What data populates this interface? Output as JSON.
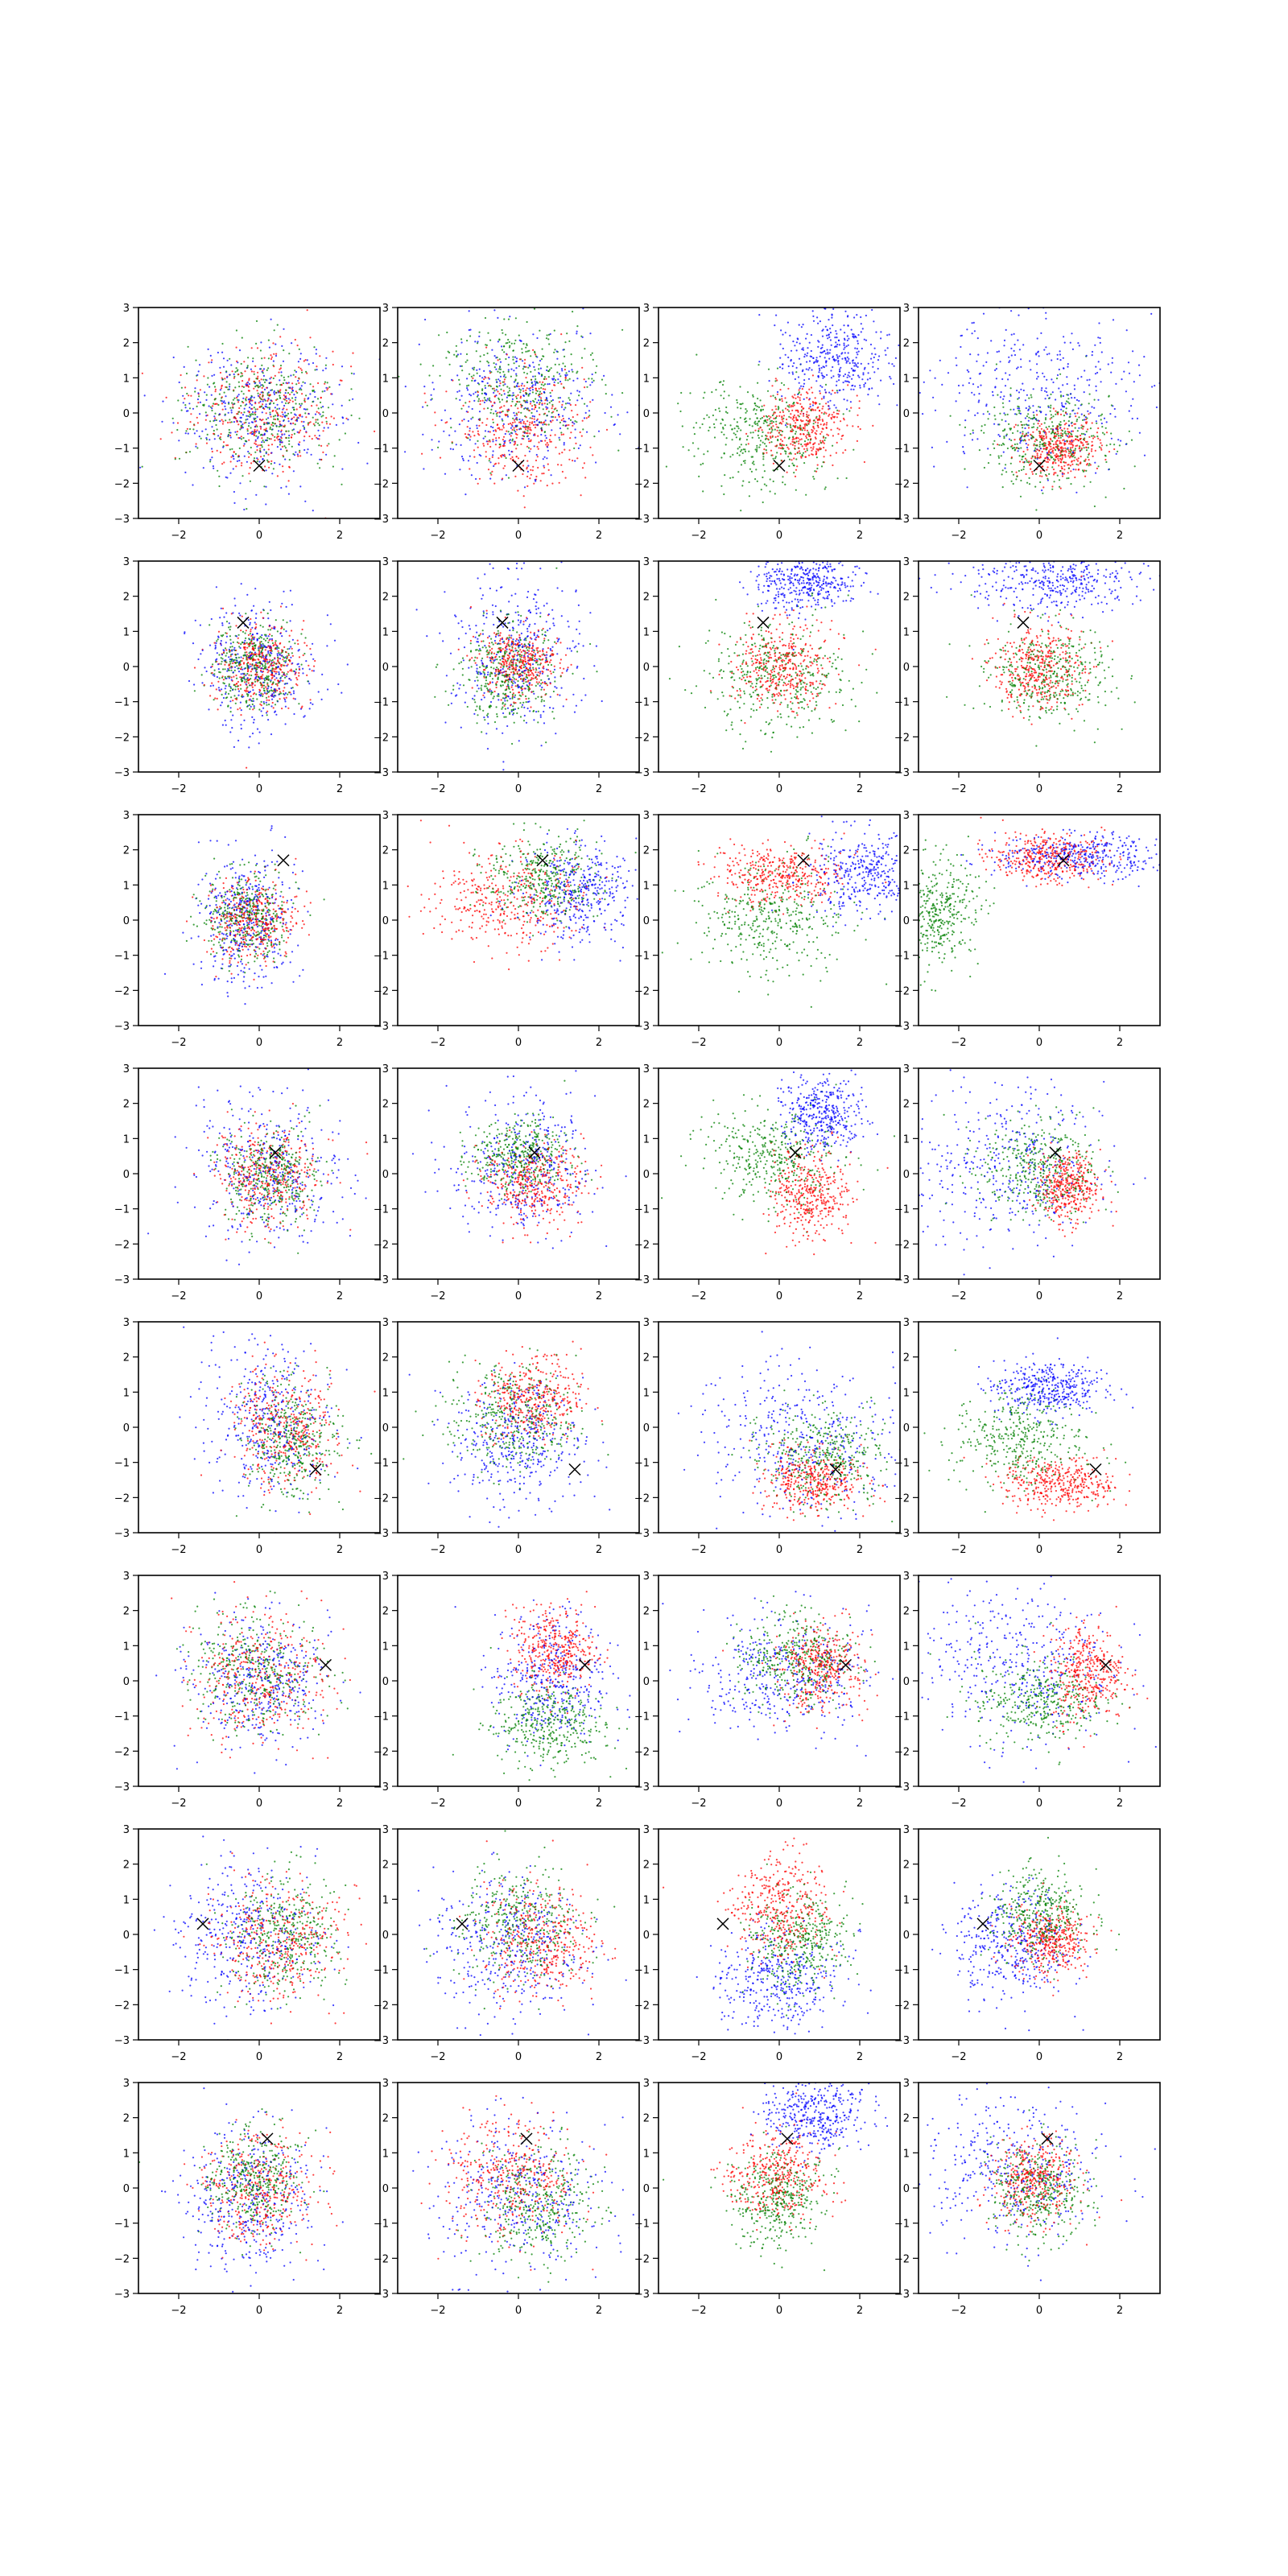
{
  "figure": {
    "rows": 8,
    "cols": 4
  },
  "colors": {
    "series_1": "#0000ff",
    "series_2": "#008000",
    "series_3": "#ff0000",
    "marker": "#000000"
  },
  "chart_data": {
    "type": "scatter",
    "grid": false,
    "legend": "none",
    "xlim": [
      -3,
      3
    ],
    "ylim": [
      -3,
      3
    ],
    "x_ticks": [
      -2,
      0,
      2
    ],
    "y_ticks": [
      -3,
      -2,
      -1,
      0,
      1,
      2,
      3
    ],
    "x_tick_labels": [
      "−2",
      "0",
      "2"
    ],
    "y_tick_labels": [
      "−3",
      "−2",
      "−1",
      "0",
      "1",
      "2",
      "3"
    ],
    "marker_shape": "x",
    "row_markers": [
      [
        0.0,
        -1.5
      ],
      [
        -0.4,
        1.25
      ],
      [
        0.6,
        1.7
      ],
      [
        0.4,
        0.6
      ],
      [
        1.4,
        -1.2
      ],
      [
        1.65,
        0.45
      ],
      [
        -1.4,
        0.3
      ],
      [
        0.2,
        1.4
      ]
    ],
    "panels": [
      [
        {
          "clusters": [
            {
              "cx": 0,
              "cy": 0,
              "sx": 1,
              "sy": 1
            },
            {
              "cx": 0,
              "cy": 0.1,
              "sx": 0.9,
              "sy": 0.9
            },
            {
              "cx": 0.1,
              "cy": 0,
              "sx": 0.9,
              "sy": 0.9
            }
          ]
        },
        {
          "clusters": [
            {
              "cx": 0,
              "cy": 0.3,
              "sx": 1.1,
              "sy": 1.1
            },
            {
              "cx": 0.1,
              "cy": 0.8,
              "sx": 1,
              "sy": 0.9
            },
            {
              "cx": 0.1,
              "cy": -0.4,
              "sx": 0.8,
              "sy": 0.8
            }
          ]
        },
        {
          "clusters": [
            {
              "cx": 1.4,
              "cy": 1.5,
              "sx": 0.65,
              "sy": 0.65
            },
            {
              "cx": -0.4,
              "cy": -0.6,
              "sx": 0.8,
              "sy": 0.8
            },
            {
              "cx": 0.6,
              "cy": -0.4,
              "sx": 0.55,
              "sy": 0.55
            }
          ]
        },
        {
          "clusters": [
            {
              "cx": 0,
              "cy": 0.5,
              "sx": 1.5,
              "sy": 1.1
            },
            {
              "cx": 0.2,
              "cy": -0.7,
              "sx": 0.8,
              "sy": 0.7
            },
            {
              "cx": 0.5,
              "cy": -1,
              "sx": 0.5,
              "sy": 0.4
            }
          ]
        }
      ],
      [
        {
          "clusters": [
            {
              "cx": 0,
              "cy": 0,
              "sx": 0.7,
              "sy": 0.9
            },
            {
              "cx": -0.1,
              "cy": 0,
              "sx": 0.5,
              "sy": 0.6
            },
            {
              "cx": 0,
              "cy": 0,
              "sx": 0.55,
              "sy": 0.6
            }
          ]
        },
        {
          "clusters": [
            {
              "cx": -0.1,
              "cy": 0.3,
              "sx": 0.8,
              "sy": 1.1
            },
            {
              "cx": -0.2,
              "cy": -0.2,
              "sx": 0.6,
              "sy": 0.7
            },
            {
              "cx": 0,
              "cy": 0.1,
              "sx": 0.5,
              "sy": 0.5
            }
          ]
        },
        {
          "clusters": [
            {
              "cx": 0.7,
              "cy": 2.4,
              "sx": 0.6,
              "sy": 0.4
            },
            {
              "cx": -0.1,
              "cy": -0.3,
              "sx": 0.9,
              "sy": 0.8
            },
            {
              "cx": 0.1,
              "cy": 0,
              "sx": 0.6,
              "sy": 0.6
            }
          ]
        },
        {
          "clusters": [
            {
              "cx": 0.4,
              "cy": 2.4,
              "sx": 1.1,
              "sy": 0.4
            },
            {
              "cx": 0.2,
              "cy": -0.2,
              "sx": 0.8,
              "sy": 0.7
            },
            {
              "cx": 0,
              "cy": 0,
              "sx": 0.55,
              "sy": 0.6
            }
          ]
        }
      ],
      [
        {
          "clusters": [
            {
              "cx": -0.3,
              "cy": 0,
              "sx": 0.6,
              "sy": 0.9
            },
            {
              "cx": -0.3,
              "cy": 0.1,
              "sx": 0.5,
              "sy": 0.6
            },
            {
              "cx": -0.2,
              "cy": 0,
              "sx": 0.55,
              "sy": 0.6
            }
          ]
        },
        {
          "clusters": [
            {
              "cx": 1.5,
              "cy": 0.8,
              "sx": 0.7,
              "sy": 0.7
            },
            {
              "cx": 0.6,
              "cy": 1.2,
              "sx": 0.7,
              "sy": 0.6
            },
            {
              "cx": -0.3,
              "cy": 0.6,
              "sx": 0.9,
              "sy": 0.7
            }
          ]
        },
        {
          "clusters": [
            {
              "cx": 2.2,
              "cy": 1.3,
              "sx": 0.7,
              "sy": 0.6
            },
            {
              "cx": -0.2,
              "cy": 0,
              "sx": 0.9,
              "sy": 0.8
            },
            {
              "cx": 0,
              "cy": 1.3,
              "sx": 0.8,
              "sy": 0.4
            }
          ]
        },
        {
          "clusters": [
            {
              "cx": 1,
              "cy": 1.8,
              "sx": 1,
              "sy": 0.3
            },
            {
              "cx": -2.5,
              "cy": 0.2,
              "sx": 0.5,
              "sy": 0.8
            },
            {
              "cx": 0.2,
              "cy": 1.8,
              "sx": 0.7,
              "sy": 0.35
            }
          ]
        }
      ],
      [
        {
          "clusters": [
            {
              "cx": 0.3,
              "cy": 0,
              "sx": 0.9,
              "sy": 1
            },
            {
              "cx": 0.3,
              "cy": -0.1,
              "sx": 0.6,
              "sy": 0.7
            },
            {
              "cx": 0.2,
              "cy": 0,
              "sx": 0.65,
              "sy": 0.7
            }
          ]
        },
        {
          "clusters": [
            {
              "cx": 0.1,
              "cy": 0.2,
              "sx": 0.9,
              "sy": 1
            },
            {
              "cx": 0,
              "cy": 0.5,
              "sx": 0.6,
              "sy": 0.5
            },
            {
              "cx": 0.4,
              "cy": -0.3,
              "sx": 0.6,
              "sy": 0.6
            }
          ]
        },
        {
          "clusters": [
            {
              "cx": 1.1,
              "cy": 1.7,
              "sx": 0.5,
              "sy": 0.5
            },
            {
              "cx": -0.2,
              "cy": 0.5,
              "sx": 0.8,
              "sy": 0.7
            },
            {
              "cx": 0.8,
              "cy": -0.6,
              "sx": 0.5,
              "sy": 0.6
            }
          ]
        },
        {
          "clusters": [
            {
              "cx": -0.8,
              "cy": 0.2,
              "sx": 1.2,
              "sy": 1.2
            },
            {
              "cx": 0,
              "cy": 0.2,
              "sx": 0.7,
              "sy": 0.7
            },
            {
              "cx": 0.7,
              "cy": -0.4,
              "sx": 0.4,
              "sy": 0.5
            }
          ]
        }
      ],
      [
        {
          "clusters": [
            {
              "cx": 0.3,
              "cy": 0.1,
              "sx": 0.8,
              "sy": 1.1
            },
            {
              "cx": 0.8,
              "cy": -0.3,
              "sx": 0.6,
              "sy": 0.8
            },
            {
              "cx": 0.6,
              "cy": 0,
              "sx": 0.6,
              "sy": 0.8
            }
          ]
        },
        {
          "clusters": [
            {
              "cx": 0,
              "cy": -0.4,
              "sx": 0.8,
              "sy": 0.9
            },
            {
              "cx": -0.2,
              "cy": 0.3,
              "sx": 0.8,
              "sy": 0.8
            },
            {
              "cx": 0.4,
              "cy": 0.8,
              "sx": 0.6,
              "sy": 0.6
            }
          ]
        },
        {
          "clusters": [
            {
              "cx": 0.5,
              "cy": -0.3,
              "sx": 1.2,
              "sy": 1
            },
            {
              "cx": 1.1,
              "cy": -0.9,
              "sx": 0.8,
              "sy": 0.7
            },
            {
              "cx": 0.9,
              "cy": -1.5,
              "sx": 0.6,
              "sy": 0.45
            }
          ]
        },
        {
          "clusters": [
            {
              "cx": 0.2,
              "cy": 1.1,
              "sx": 0.7,
              "sy": 0.4
            },
            {
              "cx": -0.5,
              "cy": -0.3,
              "sx": 0.8,
              "sy": 0.7
            },
            {
              "cx": 0.5,
              "cy": -1.6,
              "sx": 0.7,
              "sy": 0.35
            }
          ]
        }
      ],
      [
        {
          "clusters": [
            {
              "cx": 0,
              "cy": 0,
              "sx": 0.9,
              "sy": 0.9
            },
            {
              "cx": -0.1,
              "cy": 0.3,
              "sx": 0.8,
              "sy": 0.8
            },
            {
              "cx": 0,
              "cy": 0.1,
              "sx": 0.8,
              "sy": 0.9
            }
          ]
        },
        {
          "clusters": [
            {
              "cx": 0.8,
              "cy": 0,
              "sx": 0.7,
              "sy": 1
            },
            {
              "cx": 0.7,
              "cy": -1.2,
              "sx": 0.7,
              "sy": 0.6
            },
            {
              "cx": 0.9,
              "cy": 0.9,
              "sx": 0.5,
              "sy": 0.6
            }
          ]
        },
        {
          "clusters": [
            {
              "cx": 0.1,
              "cy": 0.2,
              "sx": 1.1,
              "sy": 0.8
            },
            {
              "cx": 0.4,
              "cy": 0.6,
              "sx": 0.7,
              "sy": 0.6
            },
            {
              "cx": 1,
              "cy": 0.4,
              "sx": 0.5,
              "sy": 0.6
            }
          ]
        },
        {
          "clusters": [
            {
              "cx": -0.5,
              "cy": 0.5,
              "sx": 1.2,
              "sy": 1.1
            },
            {
              "cx": 0,
              "cy": -0.5,
              "sx": 0.8,
              "sy": 0.6
            },
            {
              "cx": 1.2,
              "cy": 0.2,
              "sx": 0.45,
              "sy": 0.7
            }
          ]
        }
      ],
      [
        {
          "clusters": [
            {
              "cx": -0.3,
              "cy": 0,
              "sx": 0.9,
              "sy": 1
            },
            {
              "cx": 0.6,
              "cy": 0,
              "sx": 0.7,
              "sy": 0.8
            },
            {
              "cx": 0.4,
              "cy": -0.2,
              "sx": 0.8,
              "sy": 0.8
            }
          ]
        },
        {
          "clusters": [
            {
              "cx": -0.3,
              "cy": -0.3,
              "sx": 0.9,
              "sy": 1
            },
            {
              "cx": 0,
              "cy": 0.3,
              "sx": 0.8,
              "sy": 0.8
            },
            {
              "cx": 0.6,
              "cy": -0.2,
              "sx": 0.7,
              "sy": 0.8
            }
          ]
        },
        {
          "clusters": [
            {
              "cx": 0,
              "cy": -1.3,
              "sx": 0.8,
              "sy": 0.7
            },
            {
              "cx": 0.5,
              "cy": -0.2,
              "sx": 0.6,
              "sy": 0.7
            },
            {
              "cx": 0,
              "cy": 0.8,
              "sx": 0.6,
              "sy": 0.7
            }
          ]
        },
        {
          "clusters": [
            {
              "cx": -0.7,
              "cy": -0.3,
              "sx": 0.7,
              "sy": 0.8
            },
            {
              "cx": 0,
              "cy": 0.6,
              "sx": 0.6,
              "sy": 0.6
            },
            {
              "cx": 0.3,
              "cy": -0.2,
              "sx": 0.5,
              "sy": 0.5
            }
          ]
        }
      ],
      [
        {
          "clusters": [
            {
              "cx": -0.3,
              "cy": -0.3,
              "sx": 0.8,
              "sy": 1
            },
            {
              "cx": -0.1,
              "cy": 0.2,
              "sx": 0.6,
              "sy": 0.7
            },
            {
              "cx": 0,
              "cy": 0,
              "sx": 0.7,
              "sy": 0.8
            }
          ]
        },
        {
          "clusters": [
            {
              "cx": 0,
              "cy": -0.3,
              "sx": 1.1,
              "sy": 1.1
            },
            {
              "cx": 0.5,
              "cy": -0.5,
              "sx": 0.7,
              "sy": 0.8
            },
            {
              "cx": -0.2,
              "cy": 0.4,
              "sx": 0.8,
              "sy": 0.9
            }
          ]
        },
        {
          "clusters": [
            {
              "cx": 0.9,
              "cy": 2.1,
              "sx": 0.6,
              "sy": 0.5
            },
            {
              "cx": 0,
              "cy": -0.3,
              "sx": 0.6,
              "sy": 0.7
            },
            {
              "cx": -0.1,
              "cy": 0.4,
              "sx": 0.6,
              "sy": 0.6
            }
          ]
        },
        {
          "clusters": [
            {
              "cx": -0.7,
              "cy": 0.5,
              "sx": 1.2,
              "sy": 1
            },
            {
              "cx": 0,
              "cy": -0.1,
              "sx": 0.6,
              "sy": 0.7
            },
            {
              "cx": -0.1,
              "cy": 0.2,
              "sx": 0.5,
              "sy": 0.6
            }
          ]
        }
      ]
    ]
  }
}
